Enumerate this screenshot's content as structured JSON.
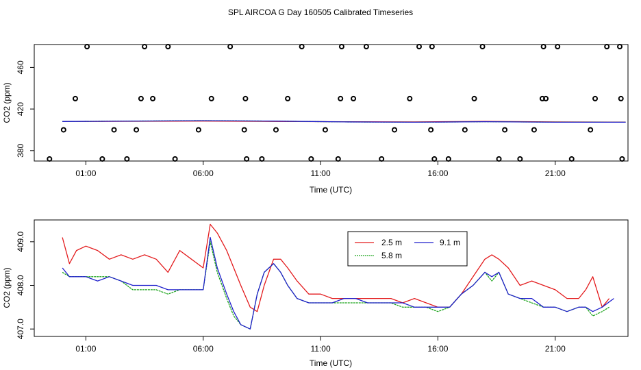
{
  "title": "SPL AIRCOA G  Day 160505  Calibrated Timeseries",
  "colors": {
    "red": "#e31a1c",
    "green": "#1aa31a",
    "blue": "#1f1fcc"
  },
  "chart_data": [
    {
      "type": "line",
      "xlabel": "Time (UTC)",
      "ylabel": "CO2 (ppm)",
      "xtick_hours": [
        1,
        6,
        11,
        16,
        21
      ],
      "xtick_labels": [
        "01:00",
        "06:00",
        "11:00",
        "16:00",
        "21:00"
      ],
      "ytick_values": [
        380,
        420,
        460
      ],
      "ytick_labels": [
        "380",
        "420",
        "460"
      ],
      "xlim": [
        -1.2,
        24.1
      ],
      "ylim": [
        370,
        482
      ],
      "series": [
        {
          "color": "red",
          "x": [
            0,
            6,
            9,
            12,
            15,
            18,
            21,
            24
          ],
          "y": [
            408,
            408.4,
            408.1,
            407.8,
            407.6,
            408.1,
            407.6,
            407.4
          ]
        },
        {
          "color": "green",
          "x": [
            0,
            6,
            9,
            12,
            15,
            18,
            21,
            24
          ],
          "y": [
            408,
            408.9,
            408.4,
            407.6,
            407.3,
            407.8,
            407.4,
            407.3
          ]
        },
        {
          "color": "blue",
          "x": [
            0,
            6,
            9,
            12,
            15,
            18,
            21,
            24
          ],
          "y": [
            408,
            408.8,
            408.4,
            407.6,
            407.3,
            407.8,
            407.3,
            407.3
          ]
        }
      ],
      "flag_points": {
        "x": [
          -0.55,
          0.05,
          0.55,
          1.05,
          1.7,
          2.2,
          2.75,
          3.15,
          3.35,
          3.5,
          3.85,
          4.5,
          4.8,
          5.8,
          6.35,
          7.15,
          7.75,
          7.8,
          7.85,
          8.5,
          9.1,
          9.6,
          10.2,
          10.6,
          11.2,
          11.75,
          11.85,
          11.9,
          12.4,
          12.95,
          13.6,
          14.15,
          14.8,
          15.2,
          15.7,
          15.75,
          15.85,
          16.45,
          17.15,
          17.55,
          17.9,
          18.6,
          18.85,
          19.5,
          20.1,
          20.45,
          20.5,
          20.6,
          21.1,
          21.7,
          22.5,
          22.7,
          23.2,
          23.75,
          23.8,
          23.85
        ],
        "y": [
          372,
          400,
          430,
          480,
          372,
          400,
          372,
          400,
          430,
          480,
          430,
          480,
          372,
          400,
          430,
          480,
          400,
          430,
          372,
          372,
          400,
          430,
          480,
          372,
          400,
          372,
          430,
          480,
          430,
          480,
          372,
          400,
          430,
          480,
          400,
          480,
          372,
          372,
          400,
          430,
          480,
          372,
          400,
          372,
          400,
          430,
          480,
          430,
          480,
          372,
          400,
          430,
          480,
          480,
          430,
          372
        ]
      }
    },
    {
      "type": "line",
      "xlabel": "Time (UTC)",
      "ylabel": "CO2 (ppm)",
      "xtick_hours": [
        1,
        6,
        11,
        16,
        21
      ],
      "xtick_labels": [
        "01:00",
        "06:00",
        "11:00",
        "16:00",
        "21:00"
      ],
      "ytick_values": [
        407.0,
        408.0,
        409.0
      ],
      "ytick_labels": [
        "407.0",
        "408.0",
        "409.0"
      ],
      "xlim": [
        -1.2,
        24.1
      ],
      "ylim": [
        406.83,
        409.5
      ],
      "legend": {
        "position": "top-center",
        "entries": [
          {
            "label": "2.5 m",
            "color": "red"
          },
          {
            "label": "9.1 m",
            "color": "blue"
          },
          {
            "label": "5.8 m",
            "color": "green"
          }
        ]
      },
      "series": [
        {
          "name": "2.5 m",
          "color": "red",
          "x": [
            0,
            0.3,
            0.6,
            1,
            1.5,
            2,
            2.5,
            3,
            3.5,
            4,
            4.5,
            5,
            5.5,
            6,
            6.3,
            6.6,
            7,
            7.3,
            7.6,
            8,
            8.3,
            8.6,
            9,
            9.3,
            9.6,
            10,
            10.5,
            11,
            11.5,
            12,
            12.5,
            13,
            13.5,
            14,
            14.5,
            15,
            15.5,
            16,
            16.5,
            17,
            17.5,
            18,
            18.3,
            18.6,
            19,
            19.5,
            20,
            20.5,
            21,
            21.5,
            22,
            22.3,
            22.6,
            23,
            23.3
          ],
          "y": [
            409.1,
            408.5,
            408.8,
            408.9,
            408.8,
            408.6,
            408.7,
            408.6,
            408.7,
            408.6,
            408.3,
            408.8,
            408.6,
            408.4,
            409.4,
            409.2,
            408.8,
            408.4,
            408.0,
            407.5,
            407.4,
            408.0,
            408.6,
            408.6,
            408.4,
            408.1,
            407.8,
            407.8,
            407.7,
            407.7,
            407.7,
            407.7,
            407.7,
            407.7,
            407.6,
            407.7,
            407.6,
            407.5,
            407.5,
            407.8,
            408.2,
            408.6,
            408.7,
            408.6,
            408.4,
            408.0,
            408.1,
            408.0,
            407.9,
            407.7,
            407.7,
            407.9,
            408.2,
            407.5,
            407.7
          ]
        },
        {
          "name": "5.8 m",
          "color": "green",
          "x": [
            0,
            0.3,
            0.6,
            1,
            1.5,
            2,
            2.5,
            3,
            3.5,
            4,
            4.5,
            5,
            5.5,
            6,
            6.3,
            6.6,
            7,
            7.3,
            7.6,
            8,
            8.3,
            8.6,
            9,
            9.3,
            9.6,
            10,
            10.5,
            11,
            11.5,
            12,
            12.5,
            13,
            13.5,
            14,
            14.5,
            15,
            15.5,
            16,
            16.5,
            17,
            17.5,
            18,
            18.3,
            18.6,
            19,
            19.5,
            20,
            20.5,
            21,
            21.5,
            22,
            22.3,
            22.6,
            23,
            23.3
          ],
          "y": [
            408.3,
            408.2,
            408.2,
            408.2,
            408.2,
            408.2,
            408.1,
            407.9,
            407.9,
            407.9,
            407.8,
            407.9,
            407.9,
            407.9,
            409.0,
            408.3,
            407.7,
            407.3,
            407.1,
            407.0,
            407.8,
            408.3,
            408.5,
            408.3,
            408.0,
            407.7,
            407.6,
            407.6,
            407.6,
            407.6,
            407.6,
            407.6,
            407.6,
            407.6,
            407.5,
            407.5,
            407.5,
            407.4,
            407.5,
            407.8,
            408.0,
            408.3,
            408.1,
            408.3,
            407.8,
            407.7,
            407.6,
            407.5,
            407.5,
            407.4,
            407.5,
            407.5,
            407.3,
            407.4,
            407.5
          ]
        },
        {
          "name": "9.1 m",
          "color": "blue",
          "x": [
            0,
            0.3,
            0.6,
            1,
            1.5,
            2,
            2.5,
            3,
            3.5,
            4,
            4.5,
            5,
            5.5,
            6,
            6.3,
            6.6,
            7,
            7.3,
            7.6,
            8,
            8.3,
            8.6,
            9,
            9.3,
            9.6,
            10,
            10.5,
            11,
            11.5,
            12,
            12.5,
            13,
            13.5,
            14,
            14.5,
            15,
            15.5,
            16,
            16.5,
            17,
            17.5,
            18,
            18.3,
            18.6,
            19,
            19.5,
            20,
            20.5,
            21,
            21.5,
            22,
            22.3,
            22.6,
            23,
            23.5
          ],
          "y": [
            408.4,
            408.2,
            408.2,
            408.2,
            408.1,
            408.2,
            408.1,
            408.0,
            408.0,
            408.0,
            407.9,
            407.9,
            407.9,
            407.9,
            409.1,
            408.4,
            407.8,
            407.4,
            407.1,
            407.0,
            407.8,
            408.3,
            408.5,
            408.3,
            408.0,
            407.7,
            407.6,
            407.6,
            407.6,
            407.7,
            407.7,
            407.6,
            407.6,
            407.6,
            407.6,
            407.5,
            407.5,
            407.5,
            407.5,
            407.8,
            408.0,
            408.3,
            408.2,
            408.3,
            407.8,
            407.7,
            407.7,
            407.5,
            407.5,
            407.4,
            407.5,
            407.5,
            407.4,
            407.5,
            407.7
          ]
        }
      ]
    }
  ]
}
